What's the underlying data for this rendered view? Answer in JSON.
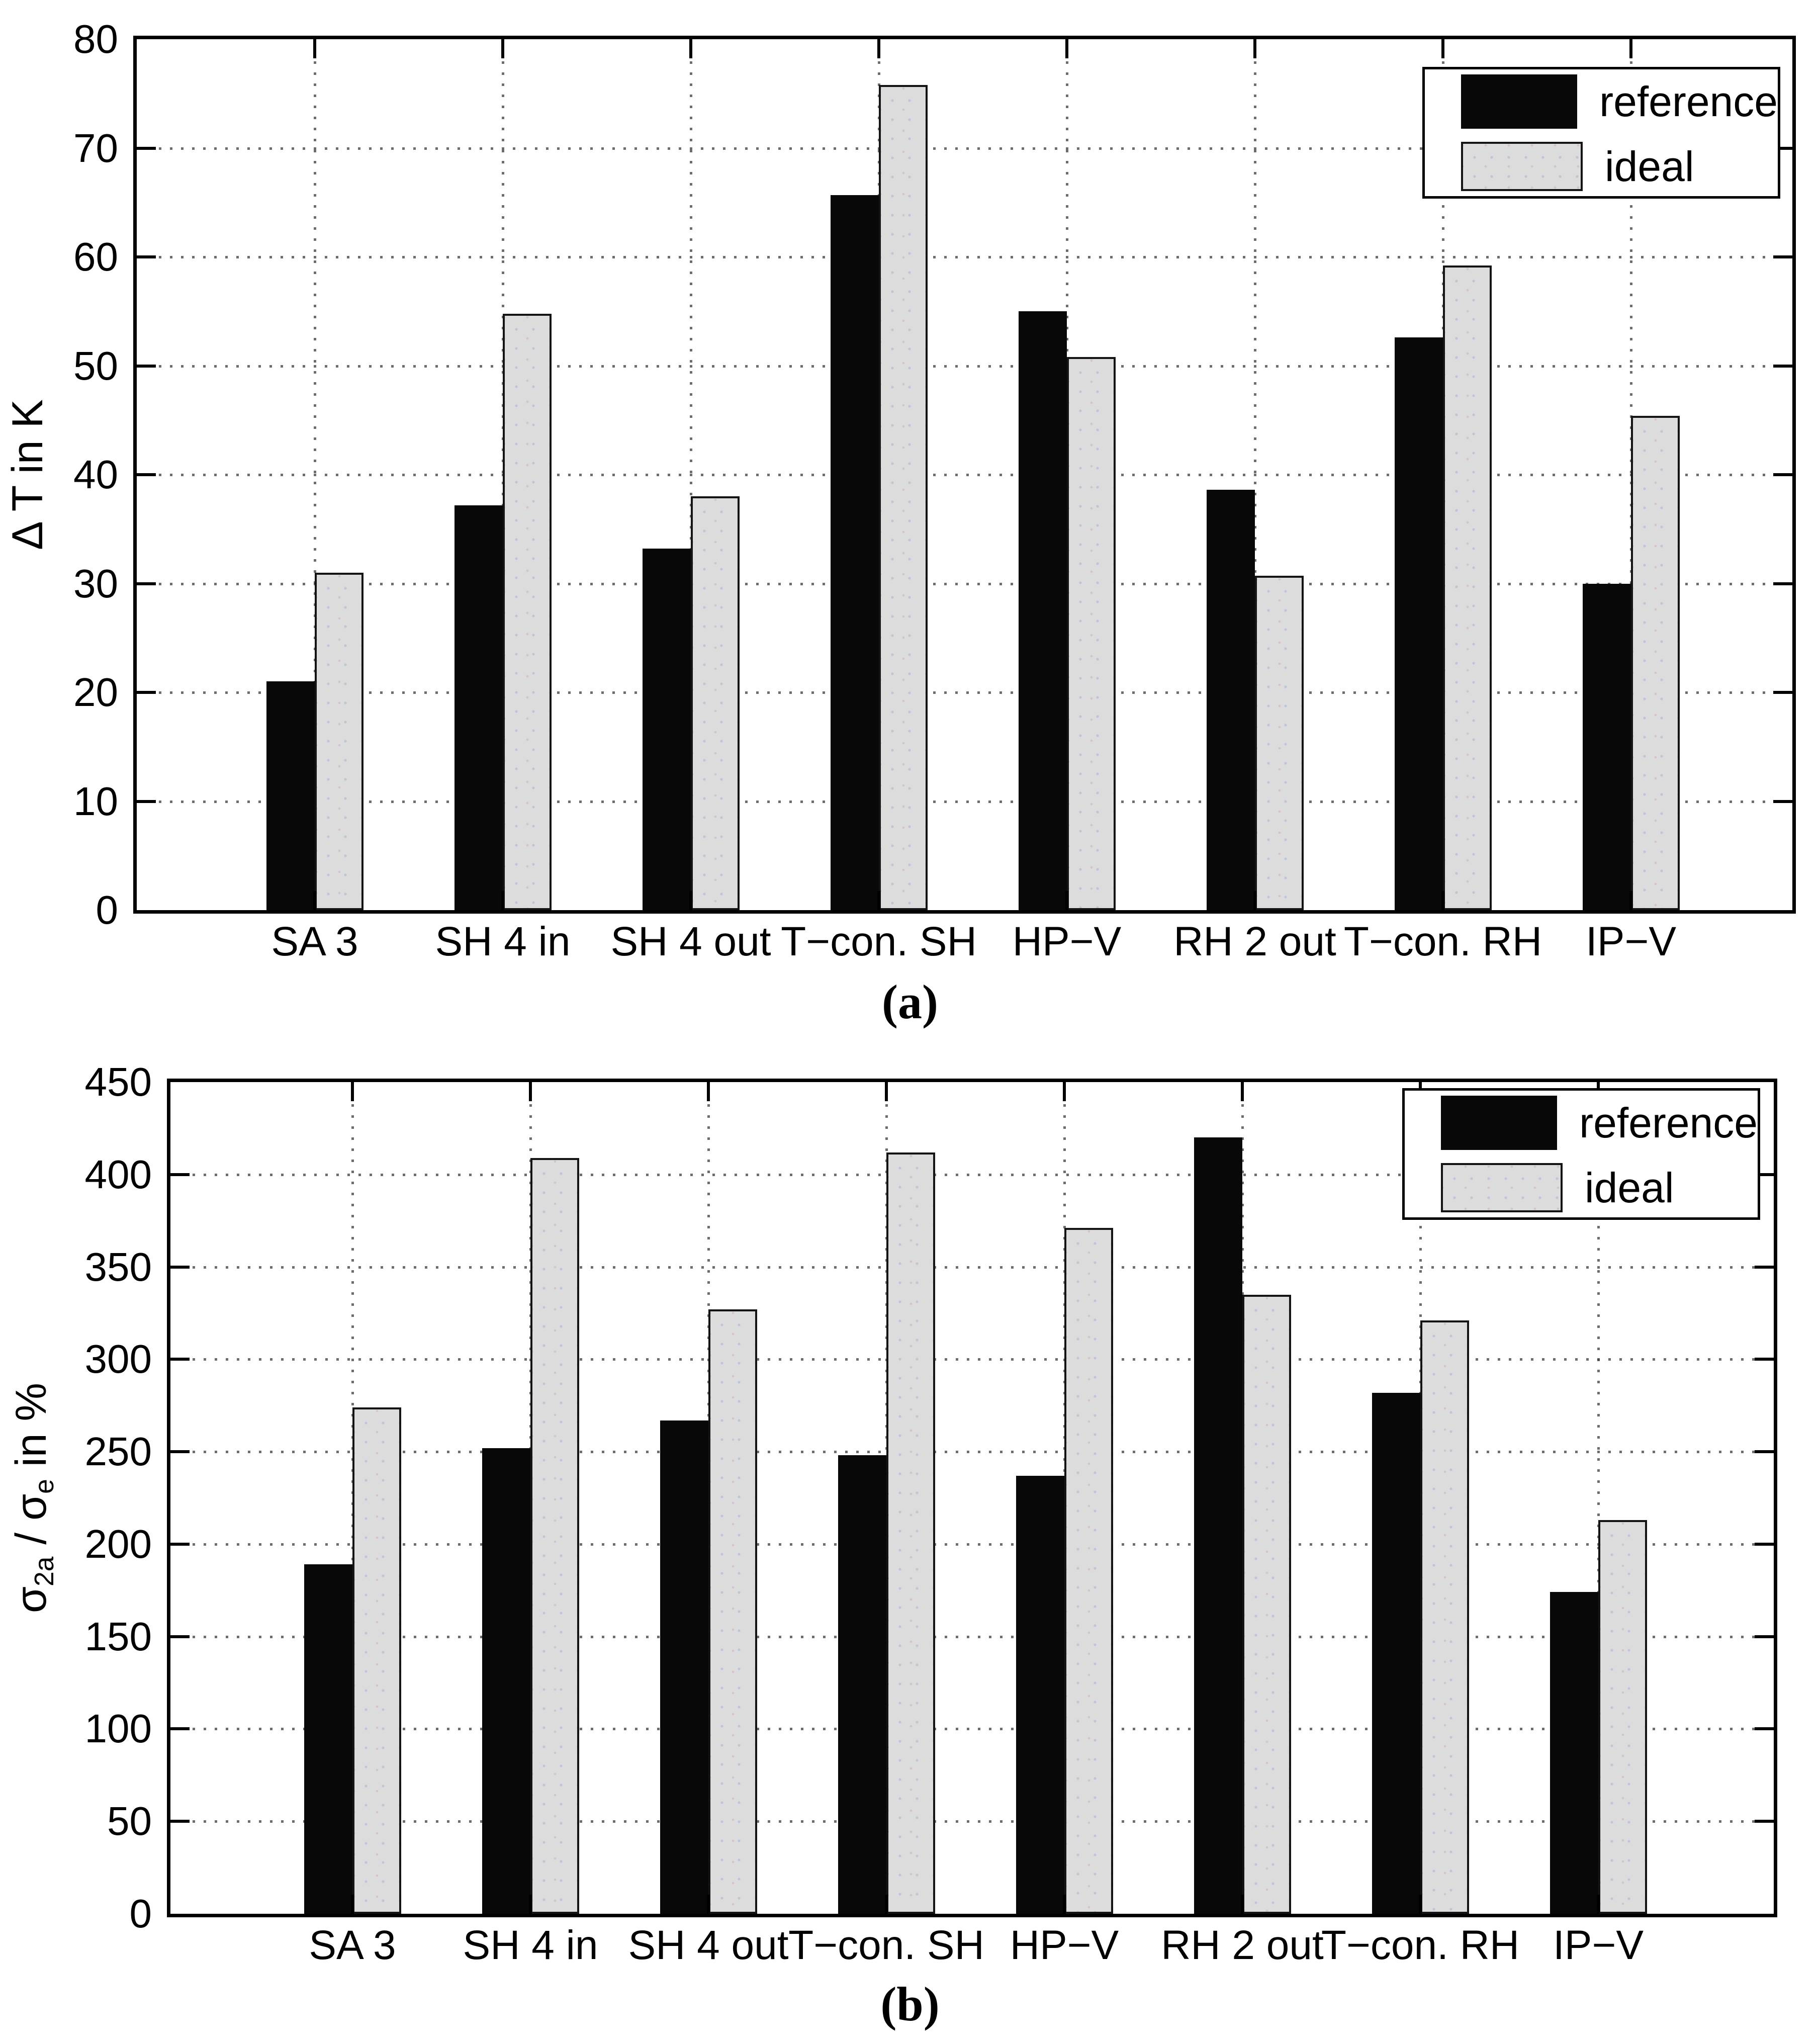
{
  "legend": {
    "reference_label": "reference",
    "ideal_label": "ideal"
  },
  "colors": {
    "reference_fill": "#080808",
    "ideal_fill": "#dcdcdc",
    "ideal_border": "#141414",
    "axis": "#000000",
    "grid_dot": "#3c3c3c",
    "background": "#ffffff"
  },
  "chart_data": [
    {
      "id": "a",
      "type": "bar",
      "caption": "(a)",
      "ylabel": "Δ T in K",
      "ylim": [
        0,
        80
      ],
      "yticks": [
        0,
        10,
        20,
        30,
        40,
        50,
        60,
        70,
        80
      ],
      "grid": true,
      "legend_position": "top-right",
      "categories": [
        "SA 3",
        "SH 4 in",
        "SH 4 out",
        "T−con. SH",
        "HP−V",
        "RH 2 out",
        "T−con. RH",
        "IP−V"
      ],
      "series": [
        {
          "name": "reference",
          "values": [
            21,
            37.2,
            33.2,
            65.7,
            55,
            38.6,
            52.6,
            30
          ]
        },
        {
          "name": "ideal",
          "values": [
            31,
            54.8,
            38,
            75.8,
            50.8,
            30.7,
            59.2,
            45.4
          ]
        }
      ]
    },
    {
      "id": "b",
      "type": "bar",
      "caption": "(b)",
      "ylabel": "σ2a / σe in %",
      "ylabel_parts": [
        {
          "text": "σ",
          "sub": false
        },
        {
          "text": "2a",
          "sub": true
        },
        {
          "text": " / ",
          "sub": false
        },
        {
          "text": "σ",
          "sub": false
        },
        {
          "text": "e",
          "sub": true
        },
        {
          "text": " in %",
          "sub": false
        }
      ],
      "ylim": [
        0,
        450
      ],
      "yticks": [
        0,
        50,
        100,
        150,
        200,
        250,
        300,
        350,
        400,
        450
      ],
      "grid": true,
      "legend_position": "top-right",
      "categories": [
        "SA 3",
        "SH 4 in",
        "SH 4 out",
        "T−con. SH",
        "HP−V",
        "RH 2 out",
        "T−con. RH",
        "IP−V"
      ],
      "series": [
        {
          "name": "reference",
          "values": [
            189,
            252,
            267,
            248,
            237,
            420,
            282,
            174
          ]
        },
        {
          "name": "ideal",
          "values": [
            274,
            409,
            327,
            412,
            371,
            335,
            321,
            213
          ]
        }
      ]
    }
  ]
}
